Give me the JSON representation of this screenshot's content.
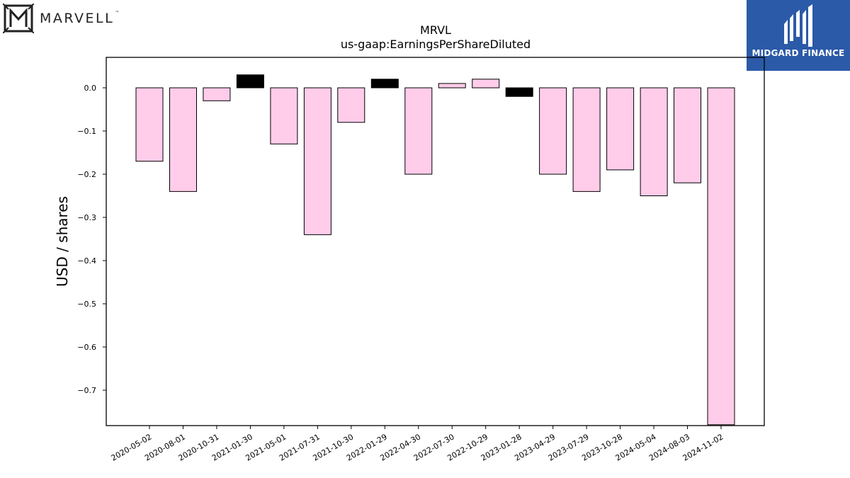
{
  "logos": {
    "left": {
      "text": "MARVELL",
      "tm": "™",
      "icon": "marvell-m-icon"
    },
    "right": {
      "text": "MIDGARD FINANCE",
      "icon": "midgard-mark-icon",
      "background": "#2b5aa8"
    }
  },
  "chart_data": {
    "type": "bar",
    "title": "MRVL",
    "subtitle": "us-gaap:EarningsPerShareDiluted",
    "ylabel": "USD / shares",
    "xlabel": "",
    "ylim": [
      -0.78,
      0.07
    ],
    "yticks": [
      0.0,
      -0.1,
      -0.2,
      -0.3,
      -0.4,
      -0.5,
      -0.6,
      -0.7
    ],
    "categories": [
      "2020-05-02",
      "2020-08-01",
      "2020-10-31",
      "2021-01-30",
      "2021-05-01",
      "2021-07-31",
      "2021-10-30",
      "2022-01-29",
      "2022-04-30",
      "2022-07-30",
      "2022-10-29",
      "2023-01-28",
      "2023-04-29",
      "2023-07-29",
      "2023-10-28",
      "2024-05-04",
      "2024-08-03",
      "2024-11-02"
    ],
    "values": [
      -0.17,
      -0.24,
      -0.03,
      0.03,
      -0.13,
      -0.34,
      -0.08,
      0.02,
      -0.2,
      0.01,
      0.02,
      -0.02,
      -0.2,
      -0.24,
      -0.19,
      -0.25,
      -0.22,
      -0.78
    ],
    "bar_colors": [
      "#ffccea",
      "#ffccea",
      "#ffccea",
      "#000000",
      "#ffccea",
      "#ffccea",
      "#ffccea",
      "#000000",
      "#ffccea",
      "#ffccea",
      "#ffccea",
      "#000000",
      "#ffccea",
      "#ffccea",
      "#ffccea",
      "#ffccea",
      "#ffccea",
      "#ffccea"
    ],
    "grid": false,
    "legend": "none"
  }
}
